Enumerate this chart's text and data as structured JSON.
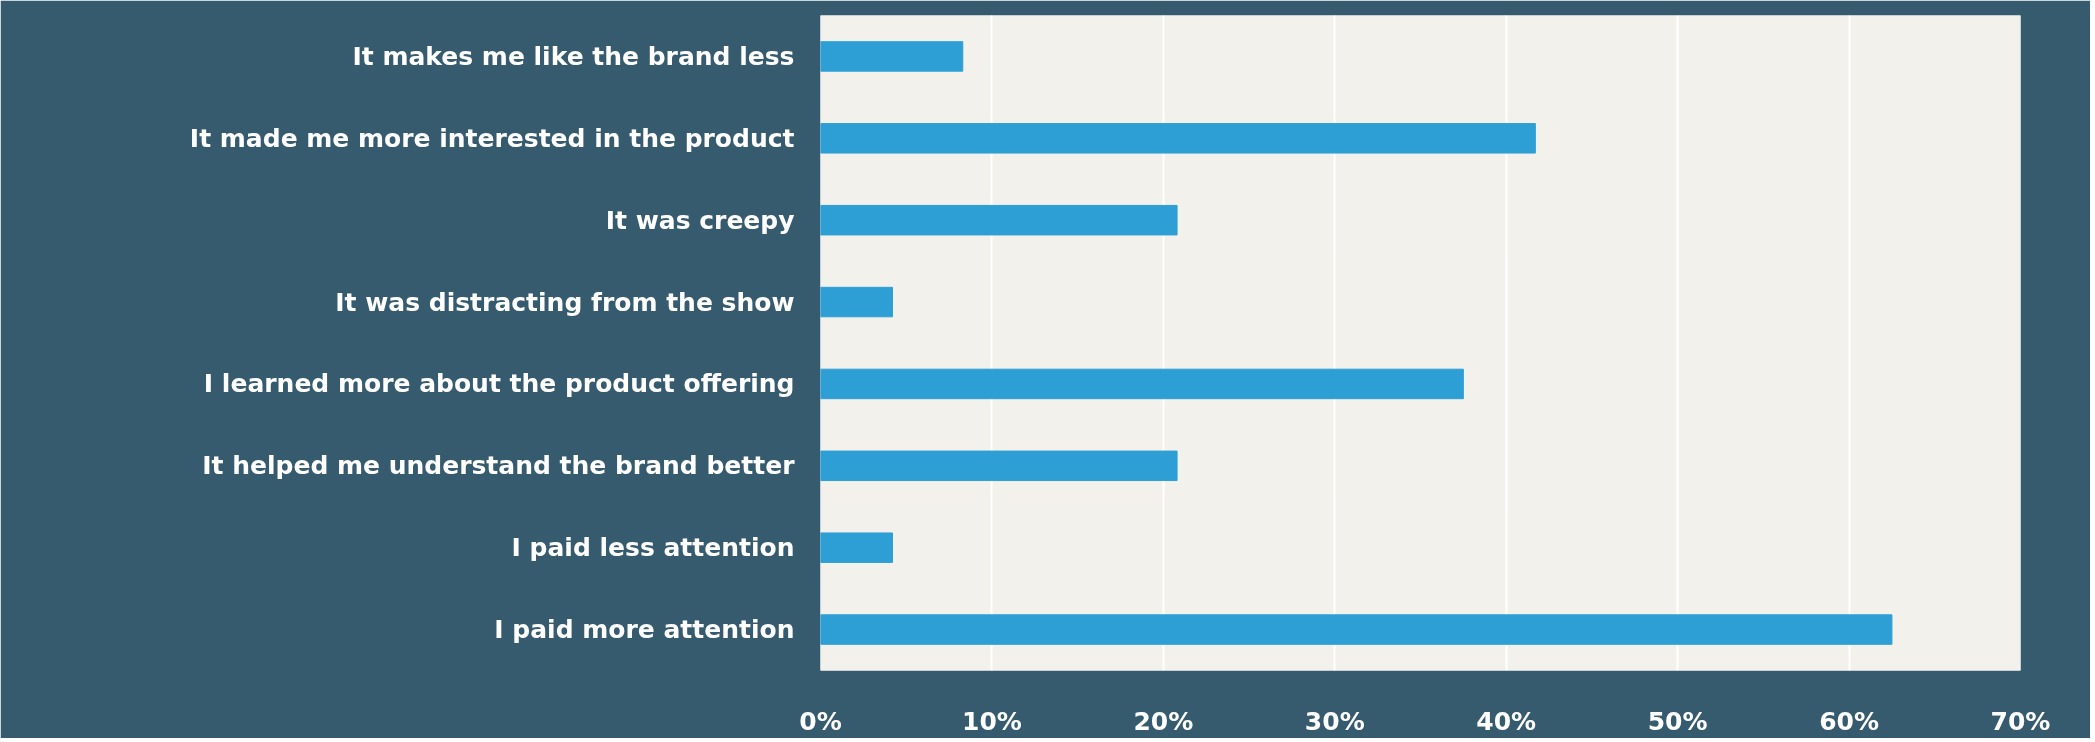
{
  "chart_data": {
    "type": "bar",
    "orientation": "horizontal",
    "categories": [
      "It makes me like the brand less",
      "It made me more interested in the product",
      "It was creepy",
      "It was distracting from the show",
      "I learned more about the product offering",
      "It helped me understand the brand better",
      "I paid less attention",
      "I paid more attention"
    ],
    "values": [
      8.3,
      41.7,
      20.8,
      4.2,
      37.5,
      20.8,
      4.2,
      62.5
    ],
    "color": "#2e9fd4",
    "xlim": [
      0,
      70
    ],
    "xticks": [
      {
        "value": 0,
        "label": "0%"
      },
      {
        "value": 10,
        "label": "10%"
      },
      {
        "value": 20,
        "label": "20%"
      },
      {
        "value": 30,
        "label": "30%"
      },
      {
        "value": 40,
        "label": "40%"
      },
      {
        "value": 50,
        "label": "50%"
      },
      {
        "value": 60,
        "label": "60%"
      },
      {
        "value": 70,
        "label": "70%"
      }
    ],
    "grid": "x"
  }
}
